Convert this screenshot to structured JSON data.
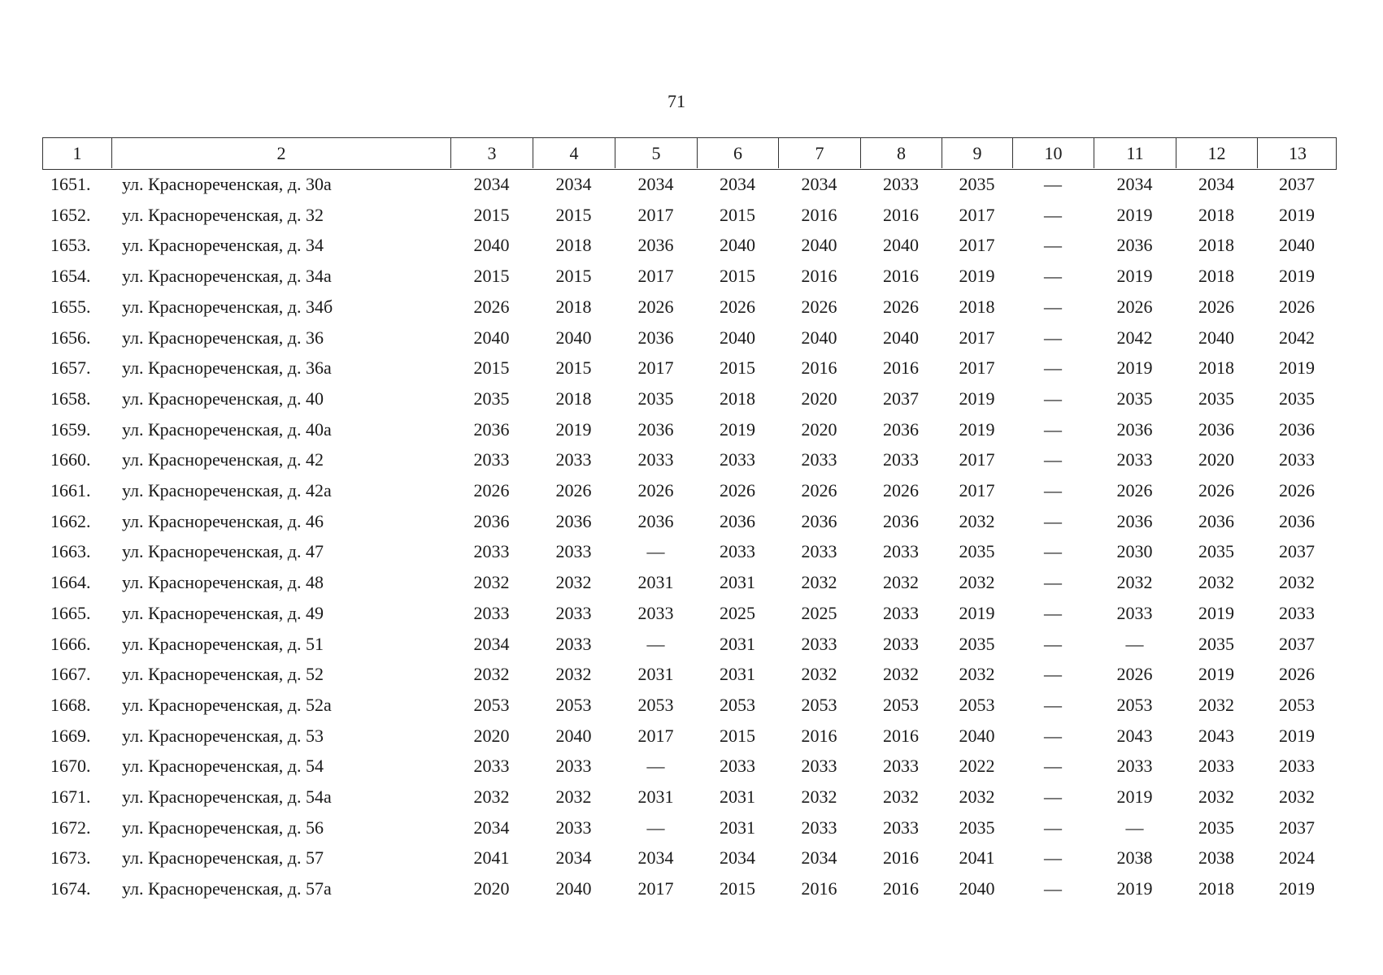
{
  "page_number": "71",
  "table": {
    "header": [
      "1",
      "2",
      "3",
      "4",
      "5",
      "6",
      "7",
      "8",
      "9",
      "10",
      "11",
      "12",
      "13"
    ],
    "rows": [
      [
        "1651.",
        "ул. Краснореченская, д. 30а",
        "2034",
        "2034",
        "2034",
        "2034",
        "2034",
        "2033",
        "2035",
        "—",
        "2034",
        "2034",
        "2037"
      ],
      [
        "1652.",
        "ул. Краснореченская, д. 32",
        "2015",
        "2015",
        "2017",
        "2015",
        "2016",
        "2016",
        "2017",
        "—",
        "2019",
        "2018",
        "2019"
      ],
      [
        "1653.",
        "ул. Краснореченская, д. 34",
        "2040",
        "2018",
        "2036",
        "2040",
        "2040",
        "2040",
        "2017",
        "—",
        "2036",
        "2018",
        "2040"
      ],
      [
        "1654.",
        "ул. Краснореченская, д. 34а",
        "2015",
        "2015",
        "2017",
        "2015",
        "2016",
        "2016",
        "2019",
        "—",
        "2019",
        "2018",
        "2019"
      ],
      [
        "1655.",
        "ул. Краснореченская, д. 34б",
        "2026",
        "2018",
        "2026",
        "2026",
        "2026",
        "2026",
        "2018",
        "—",
        "2026",
        "2026",
        "2026"
      ],
      [
        "1656.",
        "ул. Краснореченская, д. 36",
        "2040",
        "2040",
        "2036",
        "2040",
        "2040",
        "2040",
        "2017",
        "—",
        "2042",
        "2040",
        "2042"
      ],
      [
        "1657.",
        "ул. Краснореченская, д. 36а",
        "2015",
        "2015",
        "2017",
        "2015",
        "2016",
        "2016",
        "2017",
        "—",
        "2019",
        "2018",
        "2019"
      ],
      [
        "1658.",
        "ул. Краснореченская, д. 40",
        "2035",
        "2018",
        "2035",
        "2018",
        "2020",
        "2037",
        "2019",
        "—",
        "2035",
        "2035",
        "2035"
      ],
      [
        "1659.",
        "ул. Краснореченская, д. 40а",
        "2036",
        "2019",
        "2036",
        "2019",
        "2020",
        "2036",
        "2019",
        "—",
        "2036",
        "2036",
        "2036"
      ],
      [
        "1660.",
        "ул. Краснореченская, д. 42",
        "2033",
        "2033",
        "2033",
        "2033",
        "2033",
        "2033",
        "2017",
        "—",
        "2033",
        "2020",
        "2033"
      ],
      [
        "1661.",
        "ул. Краснореченская, д. 42а",
        "2026",
        "2026",
        "2026",
        "2026",
        "2026",
        "2026",
        "2017",
        "—",
        "2026",
        "2026",
        "2026"
      ],
      [
        "1662.",
        "ул. Краснореченская, д. 46",
        "2036",
        "2036",
        "2036",
        "2036",
        "2036",
        "2036",
        "2032",
        "—",
        "2036",
        "2036",
        "2036"
      ],
      [
        "1663.",
        "ул. Краснореченская, д. 47",
        "2033",
        "2033",
        "—",
        "2033",
        "2033",
        "2033",
        "2035",
        "—",
        "2030",
        "2035",
        "2037"
      ],
      [
        "1664.",
        "ул. Краснореченская, д. 48",
        "2032",
        "2032",
        "2031",
        "2031",
        "2032",
        "2032",
        "2032",
        "—",
        "2032",
        "2032",
        "2032"
      ],
      [
        "1665.",
        "ул. Краснореченская, д. 49",
        "2033",
        "2033",
        "2033",
        "2025",
        "2025",
        "2033",
        "2019",
        "—",
        "2033",
        "2019",
        "2033"
      ],
      [
        "1666.",
        "ул. Краснореченская, д. 51",
        "2034",
        "2033",
        "—",
        "2031",
        "2033",
        "2033",
        "2035",
        "—",
        "—",
        "2035",
        "2037"
      ],
      [
        "1667.",
        "ул. Краснореченская, д. 52",
        "2032",
        "2032",
        "2031",
        "2031",
        "2032",
        "2032",
        "2032",
        "—",
        "2026",
        "2019",
        "2026"
      ],
      [
        "1668.",
        "ул. Краснореченская, д. 52а",
        "2053",
        "2053",
        "2053",
        "2053",
        "2053",
        "2053",
        "2053",
        "—",
        "2053",
        "2032",
        "2053"
      ],
      [
        "1669.",
        "ул. Краснореченская, д. 53",
        "2020",
        "2040",
        "2017",
        "2015",
        "2016",
        "2016",
        "2040",
        "—",
        "2043",
        "2043",
        "2019"
      ],
      [
        "1670.",
        "ул. Краснореченская, д. 54",
        "2033",
        "2033",
        "—",
        "2033",
        "2033",
        "2033",
        "2022",
        "—",
        "2033",
        "2033",
        "2033"
      ],
      [
        "1671.",
        "ул. Краснореченская, д. 54а",
        "2032",
        "2032",
        "2031",
        "2031",
        "2032",
        "2032",
        "2032",
        "—",
        "2019",
        "2032",
        "2032"
      ],
      [
        "1672.",
        "ул. Краснореченская, д. 56",
        "2034",
        "2033",
        "—",
        "2031",
        "2033",
        "2033",
        "2035",
        "—",
        "—",
        "2035",
        "2037"
      ],
      [
        "1673.",
        "ул. Краснореченская, д. 57",
        "2041",
        "2034",
        "2034",
        "2034",
        "2034",
        "2016",
        "2041",
        "—",
        "2038",
        "2038",
        "2024"
      ],
      [
        "1674.",
        "ул. Краснореченская, д. 57а",
        "2020",
        "2040",
        "2017",
        "2015",
        "2016",
        "2016",
        "2040",
        "—",
        "2019",
        "2018",
        "2019"
      ]
    ]
  }
}
